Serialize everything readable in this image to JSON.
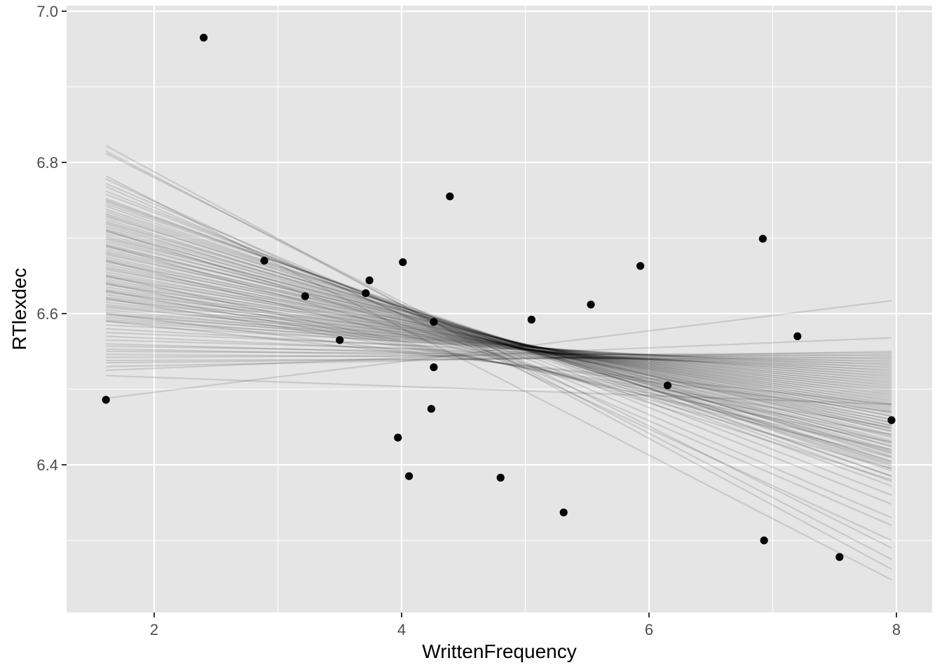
{
  "chart_data": {
    "type": "scatter",
    "xlabel": "WrittenFrequency",
    "ylabel": "RTlexdec",
    "xlim": [
      1.3,
      8.3
    ],
    "ylim": [
      6.195,
      7.0
    ],
    "x_ticks": [
      2,
      4,
      6,
      8
    ],
    "y_ticks": [
      6.4,
      6.6,
      6.8,
      7.0
    ],
    "x_tick_labels": [
      "2",
      "4",
      "6",
      "8"
    ],
    "y_tick_labels": [
      "6.4",
      "6.6",
      "6.8",
      "7.0"
    ],
    "grid": true,
    "colors": {
      "panel_background": "#e5e5e5",
      "grid": "#ffffff",
      "points": "#000000",
      "lines": "#000000"
    },
    "points": [
      {
        "x": 1.61,
        "y": 6.486
      },
      {
        "x": 2.4,
        "y": 6.965
      },
      {
        "x": 2.89,
        "y": 6.67
      },
      {
        "x": 3.22,
        "y": 6.623
      },
      {
        "x": 3.5,
        "y": 6.565
      },
      {
        "x": 3.71,
        "y": 6.627
      },
      {
        "x": 3.74,
        "y": 6.644
      },
      {
        "x": 3.97,
        "y": 6.436
      },
      {
        "x": 4.01,
        "y": 6.668
      },
      {
        "x": 4.06,
        "y": 6.385
      },
      {
        "x": 4.24,
        "y": 6.474
      },
      {
        "x": 4.26,
        "y": 6.529
      },
      {
        "x": 4.26,
        "y": 6.589
      },
      {
        "x": 4.39,
        "y": 6.755
      },
      {
        "x": 4.8,
        "y": 6.383
      },
      {
        "x": 5.05,
        "y": 6.592
      },
      {
        "x": 5.31,
        "y": 6.337
      },
      {
        "x": 5.53,
        "y": 6.612
      },
      {
        "x": 5.93,
        "y": 6.663
      },
      {
        "x": 6.15,
        "y": 6.505
      },
      {
        "x": 6.92,
        "y": 6.699
      },
      {
        "x": 6.93,
        "y": 6.3
      },
      {
        "x": 7.2,
        "y": 6.57
      },
      {
        "x": 7.54,
        "y": 6.278
      },
      {
        "x": 7.96,
        "y": 6.459
      }
    ],
    "regression_lines": {
      "x_start": 1.61,
      "x_end": 7.96,
      "opacity": 0.12,
      "count": 100,
      "y_start_values": [
        6.822,
        6.815,
        6.812,
        6.782,
        6.778,
        6.772,
        6.768,
        6.762,
        6.758,
        6.752,
        6.75,
        6.748,
        6.745,
        6.742,
        6.738,
        6.735,
        6.732,
        6.73,
        6.728,
        6.725,
        6.722,
        6.72,
        6.718,
        6.715,
        6.712,
        6.71,
        6.708,
        6.705,
        6.702,
        6.7,
        6.698,
        6.695,
        6.692,
        6.69,
        6.688,
        6.685,
        6.682,
        6.68,
        6.678,
        6.675,
        6.672,
        6.67,
        6.668,
        6.665,
        6.662,
        6.66,
        6.658,
        6.655,
        6.652,
        6.65,
        6.648,
        6.645,
        6.642,
        6.64,
        6.638,
        6.635,
        6.632,
        6.63,
        6.628,
        6.625,
        6.622,
        6.62,
        6.618,
        6.615,
        6.612,
        6.61,
        6.608,
        6.605,
        6.602,
        6.6,
        6.598,
        6.595,
        6.592,
        6.59,
        6.585,
        6.58,
        6.575,
        6.57,
        6.565,
        6.56,
        6.557,
        6.553,
        6.55,
        6.546,
        6.542,
        6.538,
        6.535,
        6.53,
        6.525,
        6.518,
        6.71,
        6.69,
        6.67,
        6.65,
        6.64,
        6.63,
        6.62,
        6.6,
        6.59,
        6.488
      ],
      "y_end_values": [
        6.262,
        6.275,
        6.29,
        6.248,
        6.3,
        6.33,
        6.32,
        6.348,
        6.36,
        6.372,
        6.378,
        6.385,
        6.392,
        6.385,
        6.395,
        6.4,
        6.404,
        6.398,
        6.41,
        6.402,
        6.412,
        6.416,
        6.405,
        6.42,
        6.424,
        6.415,
        6.428,
        6.418,
        6.432,
        6.436,
        6.425,
        6.44,
        6.43,
        6.444,
        6.448,
        6.438,
        6.452,
        6.445,
        6.456,
        6.448,
        6.46,
        6.452,
        6.464,
        6.456,
        6.468,
        6.46,
        6.472,
        6.465,
        6.476,
        6.47,
        6.48,
        6.474,
        6.484,
        6.478,
        6.488,
        6.482,
        6.492,
        6.486,
        6.496,
        6.49,
        6.5,
        6.494,
        6.504,
        6.498,
        6.508,
        6.502,
        6.512,
        6.506,
        6.516,
        6.51,
        6.52,
        6.514,
        6.524,
        6.518,
        6.528,
        6.522,
        6.532,
        6.526,
        6.536,
        6.53,
        6.54,
        6.534,
        6.544,
        6.538,
        6.548,
        6.542,
        6.546,
        6.55,
        6.568,
        6.48,
        6.38,
        6.395,
        6.41,
        6.42,
        6.43,
        6.44,
        6.45,
        6.47,
        6.48,
        6.617
      ]
    }
  }
}
